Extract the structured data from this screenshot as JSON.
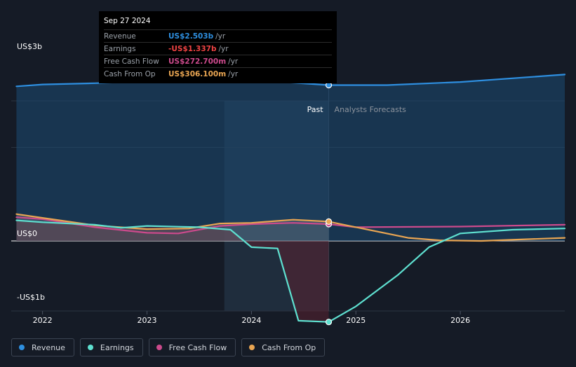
{
  "tooltip": {
    "date": "Sep 27 2024",
    "rows": [
      {
        "label": "Revenue",
        "value": "US$2.503b",
        "unit": "/yr",
        "color": "#2e8fe0"
      },
      {
        "label": "Earnings",
        "value": "-US$1.337b",
        "unit": "/yr",
        "color": "#ef4343"
      },
      {
        "label": "Free Cash Flow",
        "value": "US$272.700m",
        "unit": "/yr",
        "color": "#cc4a8c"
      },
      {
        "label": "Cash From Op",
        "value": "US$306.100m",
        "unit": "/yr",
        "color": "#e9a552"
      }
    ]
  },
  "chart_data": {
    "type": "line",
    "y_tick_labels": [
      "US$3b",
      "US$0",
      "-US$1b"
    ],
    "ylim": [
      -1.5,
      3.0
    ],
    "x_tick_labels": [
      "2022",
      "2023",
      "2024",
      "2025",
      "2026"
    ],
    "xlim": [
      2021.7,
      2027.0
    ],
    "past_label": "Past",
    "forecast_label": "Analysts Forecasts",
    "divider_x": 2024.74,
    "highlight_start_x": 2023.74,
    "series": [
      {
        "name": "Revenue",
        "color": "#2e8fe0",
        "points": [
          [
            2021.75,
            2.48
          ],
          [
            2022.0,
            2.51
          ],
          [
            2022.5,
            2.53
          ],
          [
            2023.0,
            2.56
          ],
          [
            2023.5,
            2.57
          ],
          [
            2023.9,
            2.55
          ],
          [
            2024.3,
            2.55
          ],
          [
            2024.74,
            2.5
          ],
          [
            2025.3,
            2.5
          ],
          [
            2026.0,
            2.55
          ],
          [
            2027.0,
            2.67
          ]
        ]
      },
      {
        "name": "Earnings",
        "color": "#5ee0d0",
        "points": [
          [
            2021.75,
            0.33
          ],
          [
            2022.0,
            0.3
          ],
          [
            2022.5,
            0.26
          ],
          [
            2022.75,
            0.21
          ],
          [
            2023.0,
            0.24
          ],
          [
            2023.5,
            0.22
          ],
          [
            2023.8,
            0.18
          ],
          [
            2024.0,
            -0.1
          ],
          [
            2024.25,
            -0.12
          ],
          [
            2024.45,
            -1.28
          ],
          [
            2024.74,
            -1.3
          ],
          [
            2025.0,
            -1.05
          ],
          [
            2025.4,
            -0.55
          ],
          [
            2025.7,
            -0.1
          ],
          [
            2026.0,
            0.12
          ],
          [
            2026.5,
            0.18
          ],
          [
            2027.0,
            0.2
          ]
        ]
      },
      {
        "name": "Free Cash Flow",
        "color": "#cc4a8c",
        "points": [
          [
            2021.75,
            0.38
          ],
          [
            2022.0,
            0.35
          ],
          [
            2022.5,
            0.22
          ],
          [
            2023.0,
            0.13
          ],
          [
            2023.3,
            0.12
          ],
          [
            2023.7,
            0.24
          ],
          [
            2024.0,
            0.27
          ],
          [
            2024.4,
            0.29
          ],
          [
            2024.74,
            0.27
          ],
          [
            2025.0,
            0.22
          ],
          [
            2026.0,
            0.23
          ],
          [
            2027.0,
            0.26
          ]
        ]
      },
      {
        "name": "Cash From Op",
        "color": "#e9a552",
        "points": [
          [
            2021.75,
            0.43
          ],
          [
            2022.0,
            0.37
          ],
          [
            2022.5,
            0.25
          ],
          [
            2023.0,
            0.19
          ],
          [
            2023.4,
            0.2
          ],
          [
            2023.7,
            0.28
          ],
          [
            2024.0,
            0.29
          ],
          [
            2024.4,
            0.34
          ],
          [
            2024.74,
            0.31
          ],
          [
            2025.0,
            0.22
          ],
          [
            2025.5,
            0.05
          ],
          [
            2025.8,
            0.01
          ],
          [
            2026.2,
            0.0
          ],
          [
            2027.0,
            0.05
          ]
        ]
      }
    ]
  },
  "legend": [
    {
      "label": "Revenue",
      "color": "#2e8fe0"
    },
    {
      "label": "Earnings",
      "color": "#5ee0d0"
    },
    {
      "label": "Free Cash Flow",
      "color": "#cc4a8c"
    },
    {
      "label": "Cash From Op",
      "color": "#e9a552"
    }
  ]
}
